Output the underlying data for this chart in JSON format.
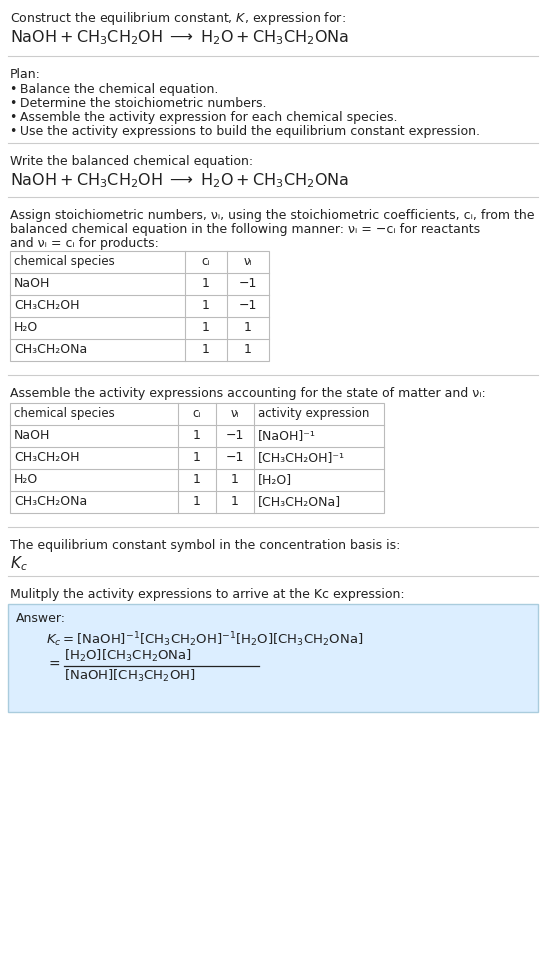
{
  "bg_color": "#ffffff",
  "text_color": "#222222",
  "light_blue_bg": "#dceeff",
  "light_blue_border": "#aaccdd",
  "line_color": "#cccccc",
  "title_line1": "Construct the equilibrium constant, $K$, expression for:",
  "title_line2_parts": [
    "NaOH + CH",
    "3",
    "CH",
    "2",
    "OH ⟶ H",
    "2",
    "O + CH",
    "3",
    "CH",
    "2",
    "ONa"
  ],
  "plan_header": "Plan:",
  "plan_items": [
    "• Balance the chemical equation.",
    "• Determine the stoichiometric numbers.",
    "• Assemble the activity expression for each chemical species.",
    "• Use the activity expressions to build the equilibrium constant expression."
  ],
  "balanced_header": "Write the balanced chemical equation:",
  "stoich_intro_line1": "Assign stoichiometric numbers, νᵢ, using the stoichiometric coefficients, cᵢ, from the",
  "stoich_intro_line2": "balanced chemical equation in the following manner: νᵢ = −cᵢ for reactants",
  "stoich_intro_line3": "and νᵢ = cᵢ for products:",
  "table1_col_headers": [
    "chemical species",
    "cᵢ",
    "νᵢ"
  ],
  "table1_rows": [
    [
      "NaOH",
      "1",
      "−1"
    ],
    [
      "CH₃CH₂OH",
      "1",
      "−1"
    ],
    [
      "H₂O",
      "1",
      "1"
    ],
    [
      "CH₃CH₂ONa",
      "1",
      "1"
    ]
  ],
  "assemble_intro": "Assemble the activity expressions accounting for the state of matter and νᵢ:",
  "table2_col_headers": [
    "chemical species",
    "cᵢ",
    "νᵢ",
    "activity expression"
  ],
  "table2_rows": [
    [
      "NaOH",
      "1",
      "−1",
      "[NaOH]⁻¹"
    ],
    [
      "CH₃CH₂OH",
      "1",
      "−1",
      "[CH₃CH₂OH]⁻¹"
    ],
    [
      "H₂O",
      "1",
      "1",
      "[H₂O]"
    ],
    [
      "CH₃CH₂ONa",
      "1",
      "1",
      "[CH₃CH₂ONa]"
    ]
  ],
  "kc_line1": "The equilibrium constant symbol in the concentration basis is:",
  "kc_symbol": "Kᴄ",
  "multiply_intro": "Mulitply the activity expressions to arrive at the Kᴄ expression:",
  "answer_label": "Answer:",
  "answer_eq_line1": "Kᴄ = [NaOH]⁻¹ [CH₃CH₂OH]⁻¹ [H₂O] [CH₃CH₂ONa]",
  "answer_eq_line2_lhs": "=",
  "answer_eq_num": "[H₂O] [CH₃CH₂ONa]",
  "answer_eq_den": "[NaOH] [CH₃CH₂OH]"
}
